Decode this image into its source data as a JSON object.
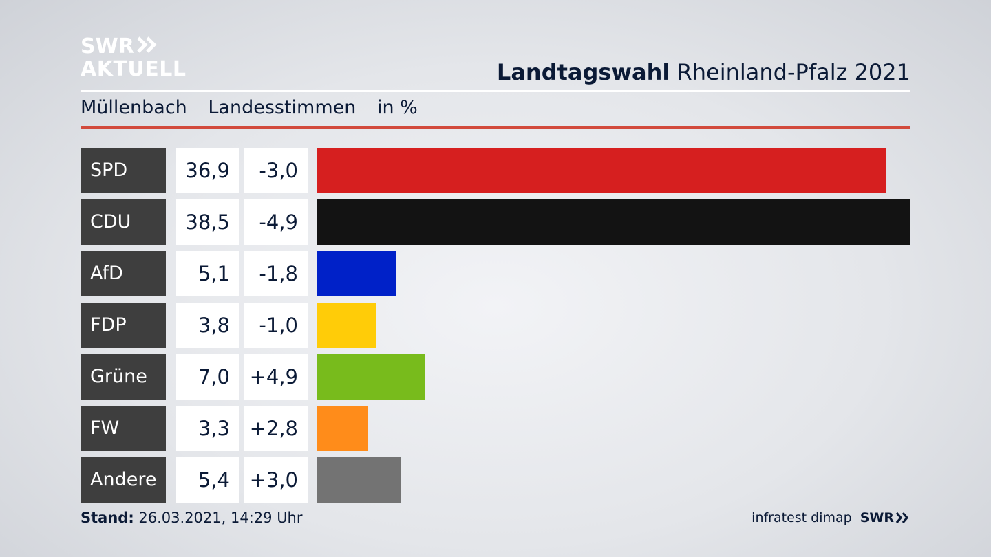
{
  "brand": {
    "logo_line1": "SWR",
    "logo_line2": "AKTUELL",
    "footer_brand": "SWR"
  },
  "header": {
    "title_strong": "Landtagswahl",
    "title_rest": "Rheinland-Pfalz 2021",
    "place": "Müllenbach",
    "measure": "Landesstimmen",
    "unit": "in %"
  },
  "footer": {
    "stand_label": "Stand:",
    "stand_value": "26.03.2021, 14:29 Uhr",
    "source": "infratest dimap"
  },
  "colors": {
    "SPD": "#d61f1f",
    "CDU": "#131313",
    "AfD": "#0021c8",
    "FDP": "#ffcc08",
    "Grüne": "#78bb1c",
    "FW": "#ff8c1a",
    "Andere": "#737373",
    "accent_red": "#d24a3c",
    "text_navy": "#0b1a36"
  },
  "chart_data": {
    "type": "bar",
    "orientation": "horizontal",
    "title": "Landtagswahl Rheinland-Pfalz 2021",
    "subtitle": "Müllenbach Landesstimmen in %",
    "categories": [
      "SPD",
      "CDU",
      "AfD",
      "FDP",
      "Grüne",
      "FW",
      "Andere"
    ],
    "values": [
      36.9,
      38.5,
      5.1,
      3.8,
      7.0,
      3.3,
      5.4
    ],
    "value_labels": [
      "36,9",
      "38,5",
      "5,1",
      "3,8",
      "7,0",
      "3,3",
      "5,4"
    ],
    "diff_labels": [
      "-3,0",
      "-4,9",
      "-1,8",
      "-1,0",
      "+4,9",
      "+2,8",
      "+3,0"
    ],
    "diffs": [
      -3.0,
      -4.9,
      -1.8,
      -1.0,
      4.9,
      2.8,
      3.0
    ],
    "xlim": [
      0,
      38.5
    ],
    "grid": false,
    "legend": "none"
  }
}
